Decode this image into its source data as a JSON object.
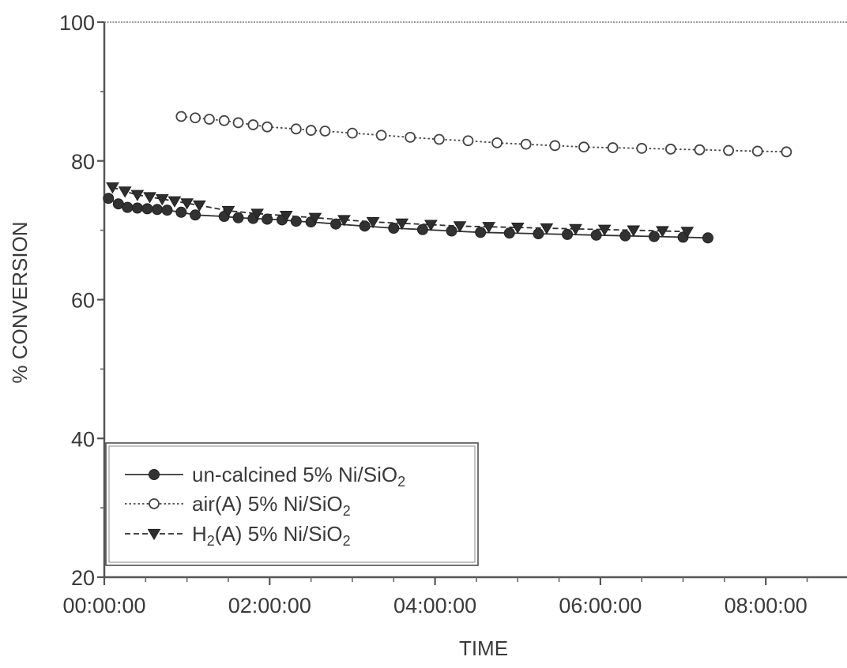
{
  "chart_data": {
    "type": "line",
    "title": "",
    "xlabel": "TIME",
    "ylabel": "% CONVERSION",
    "xlim": [
      0,
      8.6
    ],
    "ylim": [
      20,
      100
    ],
    "x_unit": "hours",
    "x_ticks": [
      {
        "value": 0,
        "label": "00:00:00"
      },
      {
        "value": 2,
        "label": "02:00:00"
      },
      {
        "value": 4,
        "label": "04:00:00"
      },
      {
        "value": 6,
        "label": "06:00:00"
      },
      {
        "value": 8,
        "label": "08:00:00"
      }
    ],
    "y_ticks": [
      {
        "value": 20,
        "label": "20"
      },
      {
        "value": 40,
        "label": "40"
      },
      {
        "value": 60,
        "label": "60"
      },
      {
        "value": 80,
        "label": "80"
      },
      {
        "value": 100,
        "label": "100"
      }
    ],
    "grid": false,
    "legend_position": "bottom-left",
    "series": [
      {
        "name": "un-calcined 5% Ni/SiO2",
        "legend_label": {
          "main": "un-calcined 5% Ni/SiO",
          "sub": "2",
          "suffix": ""
        },
        "marker": "filled-circle",
        "line": "solid",
        "color": "#333333",
        "x": [
          0.05,
          0.17,
          0.28,
          0.4,
          0.52,
          0.64,
          0.76,
          0.93,
          1.1,
          1.45,
          1.62,
          1.8,
          1.97,
          2.15,
          2.32,
          2.5,
          2.8,
          3.15,
          3.5,
          3.85,
          4.2,
          4.55,
          4.9,
          5.25,
          5.6,
          5.95,
          6.3,
          6.65,
          7.0,
          7.3
        ],
        "y": [
          74.6,
          73.8,
          73.3,
          73.2,
          73.1,
          73.0,
          72.9,
          72.6,
          72.2,
          72.0,
          71.8,
          71.7,
          71.6,
          71.5,
          71.3,
          71.2,
          70.9,
          70.6,
          70.3,
          70.1,
          69.9,
          69.7,
          69.6,
          69.5,
          69.4,
          69.3,
          69.2,
          69.1,
          69.0,
          68.9
        ]
      },
      {
        "name": "air(A) 5% Ni/SiO2",
        "legend_label": {
          "main": "air(A) 5% Ni/SiO",
          "sub": "2",
          "suffix": ""
        },
        "marker": "open-circle",
        "line": "dotted",
        "color": "#444444",
        "x": [
          0.93,
          1.1,
          1.27,
          1.45,
          1.62,
          1.8,
          1.97,
          2.32,
          2.5,
          2.67,
          3.0,
          3.35,
          3.7,
          4.05,
          4.4,
          4.75,
          5.1,
          5.45,
          5.8,
          6.15,
          6.5,
          6.85,
          7.2,
          7.55,
          7.9,
          8.25
        ],
        "y": [
          86.4,
          86.2,
          86.0,
          85.8,
          85.5,
          85.2,
          84.9,
          84.6,
          84.4,
          84.3,
          84.0,
          83.7,
          83.4,
          83.1,
          82.9,
          82.6,
          82.4,
          82.2,
          82.0,
          81.9,
          81.8,
          81.7,
          81.6,
          81.5,
          81.4,
          81.3
        ]
      },
      {
        "name": "H2(A) 5% Ni/SiO2",
        "legend_label": {
          "main": "H",
          "sub": "2",
          "suffix": "(A) 5% Ni/SiO",
          "sub2": "2"
        },
        "marker": "filled-triangle-down",
        "line": "dashed",
        "color": "#2e2e2e",
        "x": [
          0.1,
          0.25,
          0.4,
          0.55,
          0.7,
          0.85,
          1.0,
          1.15,
          1.5,
          1.85,
          2.2,
          2.55,
          2.9,
          3.25,
          3.6,
          3.95,
          4.3,
          4.65,
          5.0,
          5.35,
          5.7,
          6.05,
          6.4,
          6.75,
          7.05
        ],
        "y": [
          76.2,
          75.6,
          75.1,
          74.8,
          74.5,
          74.2,
          73.9,
          73.6,
          72.8,
          72.4,
          72.1,
          71.8,
          71.5,
          71.2,
          71.0,
          70.8,
          70.6,
          70.5,
          70.4,
          70.3,
          70.2,
          70.1,
          70.0,
          69.9,
          69.8
        ]
      }
    ]
  }
}
